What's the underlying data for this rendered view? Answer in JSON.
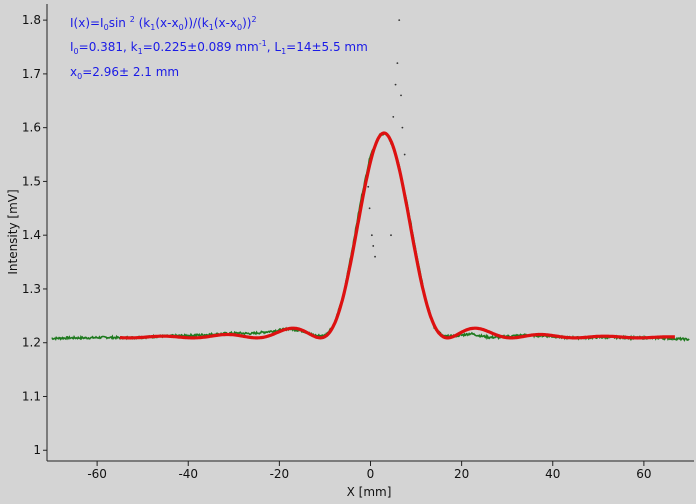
{
  "chart_data": {
    "type": "scatter",
    "xlabel": "X [mm]",
    "ylabel": "Intensity [mV]",
    "xlim": [
      -71,
      71
    ],
    "ylim": [
      0.98,
      1.83
    ],
    "xticks": [
      -60,
      -40,
      -20,
      0,
      20,
      40,
      60
    ],
    "yticks": [
      1,
      1.1,
      1.2,
      1.3,
      1.4,
      1.5,
      1.6,
      1.7,
      1.8
    ],
    "grid": false,
    "annotations": {
      "formula": "I(x)=I0sin 2 (k1(x-x0))/(k1(x-x0))2",
      "params_line1": "I0=0.381,  k1=0.225±0.089 mm-1,   L1=14±5.5 mm",
      "params_line2": "x0=2.96±  2.1 mm"
    },
    "fit_params": {
      "I0": 0.381,
      "k1": 0.225,
      "x0": 2.96,
      "baseline": 1.209
    },
    "series": [
      {
        "role": "measured",
        "color": "#1f7a1f",
        "x": [
          -70,
          -66,
          -62,
          -58,
          -54,
          -50,
          -46,
          -42,
          -38,
          -34,
          -30,
          -26,
          -22,
          -18,
          -15,
          -12,
          -10,
          -8,
          -6,
          -4,
          -2,
          0,
          2,
          3,
          4,
          6,
          8,
          10,
          12,
          14,
          16,
          18,
          20,
          22,
          24,
          26,
          28,
          30,
          34,
          38,
          42,
          46,
          50,
          54,
          58,
          62,
          66,
          70
        ],
        "y": [
          1.208,
          1.209,
          1.209,
          1.21,
          1.209,
          1.21,
          1.212,
          1.213,
          1.214,
          1.216,
          1.218,
          1.217,
          1.221,
          1.226,
          1.222,
          1.213,
          1.213,
          1.234,
          1.286,
          1.375,
          1.47,
          1.55,
          1.585,
          1.59,
          1.582,
          1.54,
          1.46,
          1.37,
          1.285,
          1.228,
          1.212,
          1.212,
          1.214,
          1.217,
          1.213,
          1.21,
          1.21,
          1.212,
          1.214,
          1.213,
          1.21,
          1.209,
          1.21,
          1.21,
          1.209,
          1.209,
          1.208,
          1.206
        ]
      },
      {
        "role": "fit",
        "color": "#dd1111",
        "x_range": [
          -55,
          67
        ]
      }
    ],
    "outliers": {
      "color": "#333333",
      "x": [
        -0.5,
        -0.2,
        0.3,
        0.6,
        1.0,
        4.5,
        5.0,
        5.5,
        5.9,
        6.3,
        6.7,
        7.0,
        7.5
      ],
      "y": [
        1.49,
        1.45,
        1.4,
        1.38,
        1.36,
        1.4,
        1.62,
        1.68,
        1.72,
        1.8,
        1.66,
        1.6,
        1.55
      ]
    }
  }
}
